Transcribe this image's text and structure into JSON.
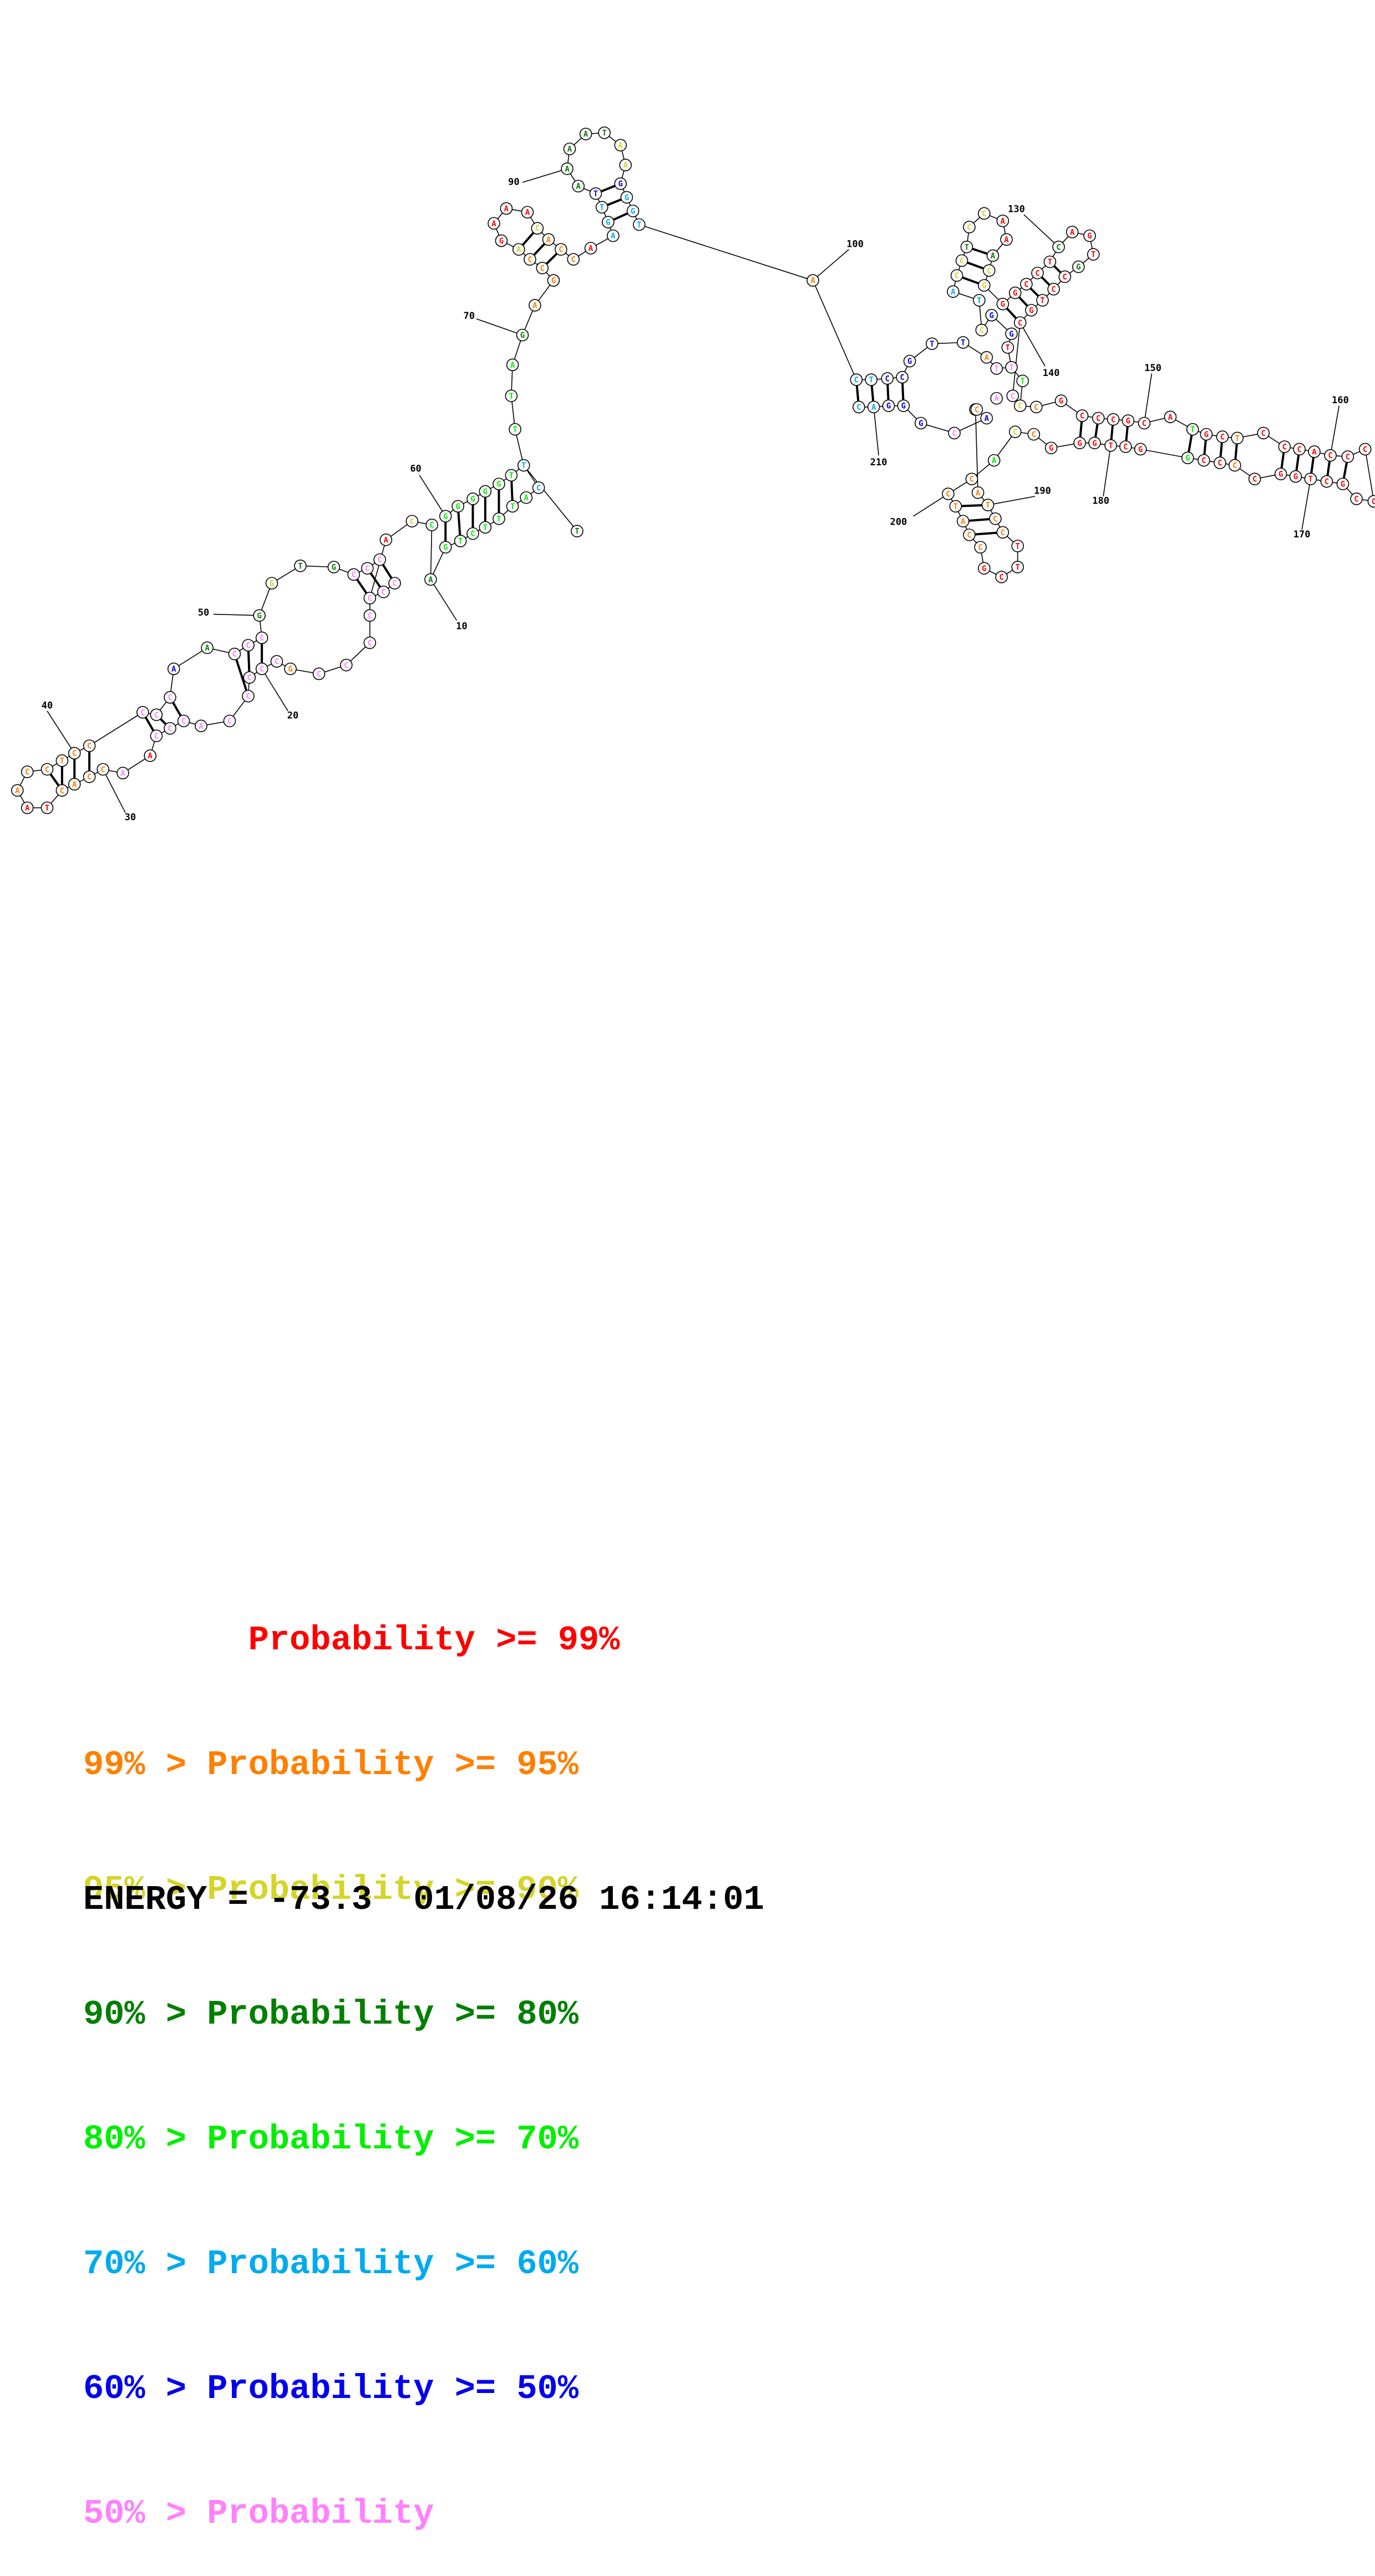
{
  "legend": [
    {
      "text": "        Probability >= 99%",
      "color": "#ff0000"
    },
    {
      "text": "99% > Probability >= 95%",
      "color": "#ff7f00"
    },
    {
      "text": "95% > Probability >= 90%",
      "color": "#d4d42a"
    },
    {
      "text": "90% > Probability >= 80%",
      "color": "#007f00"
    },
    {
      "text": "80% > Probability >= 70%",
      "color": "#00ee00"
    },
    {
      "text": "70% > Probability >= 60%",
      "color": "#00aaee"
    },
    {
      "text": "60% > Probability >= 50%",
      "color": "#0000ee"
    },
    {
      "text": "50% > Probability",
      "color": "#ff80ff"
    }
  ],
  "energy_line": "ENERGY = -73.3  01/08/26 16:14:01",
  "position_labels": [
    "10",
    "20",
    "30",
    "40",
    "50",
    "60",
    "70",
    "90",
    "100",
    "130",
    "140",
    "150",
    "160",
    "170",
    "180",
    "190",
    "200",
    "210"
  ],
  "colors": {
    "red": "#ff0000",
    "orange": "#ff7f00",
    "yellow": "#d4d42a",
    "dkgreen": "#007f00",
    "green": "#00ee00",
    "cyan": "#00aaee",
    "blue": "#0000ee",
    "pink": "#ff80ff"
  }
}
